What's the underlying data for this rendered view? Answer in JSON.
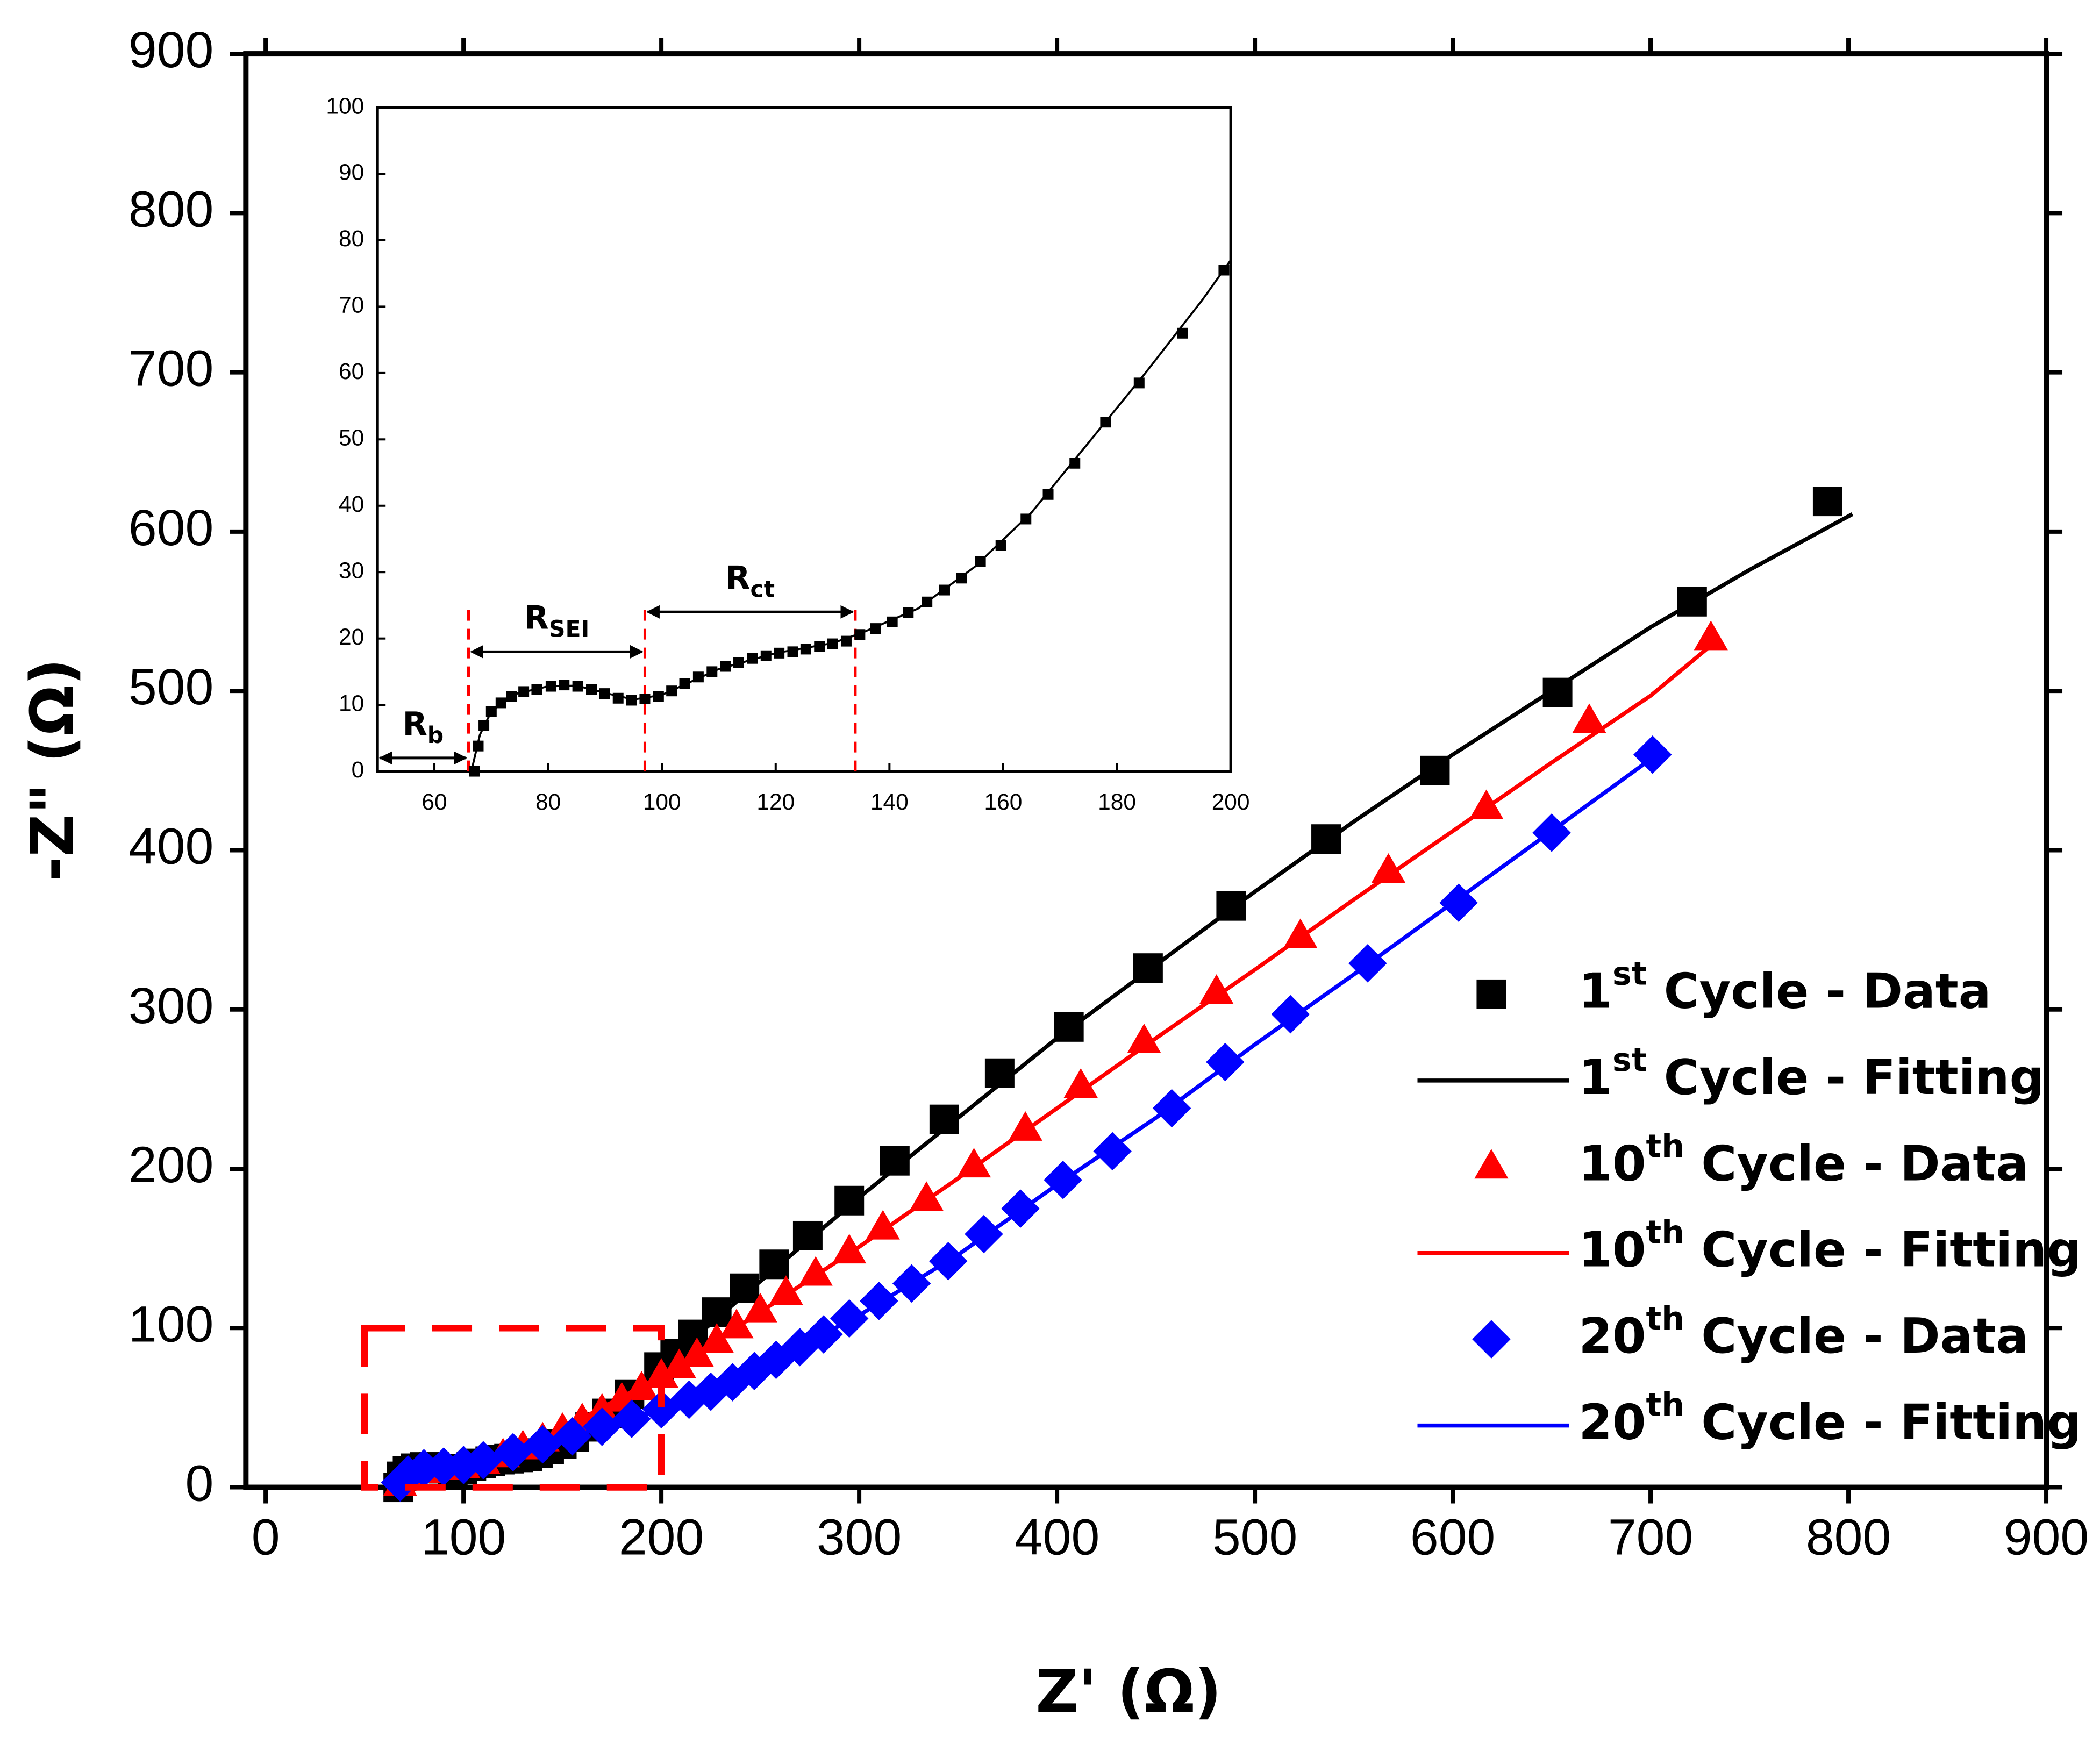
{
  "chart_data": [
    {
      "type": "scatter",
      "x_label": "Z' (Ω)",
      "y_label": "-Z\" (Ω)",
      "xlim": [
        -10,
        900
      ],
      "ylim": [
        0,
        900
      ],
      "xticks": [
        0,
        100,
        200,
        300,
        400,
        500,
        600,
        700,
        800,
        900
      ],
      "yticks": [
        0,
        100,
        200,
        300,
        400,
        500,
        600,
        700,
        800,
        900
      ],
      "legend": "lower right",
      "series": [
        {
          "name": "1st Cycle - Data",
          "style": "square",
          "color": "#000000",
          "x": [
            67,
            68.7,
            71.7,
            75.7,
            80.5,
            85.2,
            89.9,
            94.6,
            99.4,
            104,
            108.8,
            113.5,
            118.3,
            123,
            127.7,
            132.4,
            137.6,
            143.3,
            149.7,
            156,
            164,
            172.6,
            183.9,
            198.8,
            207,
            216,
            228,
            242,
            257,
            274,
            295,
            318,
            343,
            371,
            406,
            446,
            488,
            536,
            591,
            653,
            721,
            789.5
          ],
          "y": [
            0,
            6.9,
            10.3,
            12,
            12.8,
            12.8,
            11.7,
            10.7,
            11.3,
            13.2,
            15,
            16.4,
            17.4,
            18,
            18.8,
            19.6,
            21.5,
            23.9,
            27.3,
            31.6,
            38,
            46.4,
            58.5,
            75.5,
            84,
            96,
            110,
            125,
            140,
            158,
            180,
            205,
            231,
            260,
            289,
            326,
            365,
            407,
            450,
            499,
            556,
            619
          ]
        },
        {
          "name": "1st Cycle - Fitting",
          "style": "line",
          "color": "#000000",
          "x": [
            67,
            70,
            80,
            90,
            97,
            110,
            135,
            160,
            200,
            230,
            260,
            300,
            350,
            400,
            450,
            500,
            550,
            600,
            650,
            700,
            750,
            802
          ],
          "y": [
            0,
            9,
            12.8,
            11.7,
            10.9,
            15.3,
            20.6,
            34,
            76,
            108,
            140,
            182,
            232,
            282,
            328,
            374,
            418,
            460,
            500,
            540,
            576,
            611
          ]
        },
        {
          "name": "10th Cycle - Data",
          "style": "triangle",
          "color": "#ff0000",
          "x": [
            68,
            72,
            80,
            90,
            100,
            110,
            120,
            130,
            140,
            150,
            160,
            170,
            180,
            190,
            200,
            209,
            218,
            228,
            238,
            250,
            263,
            278,
            295,
            312,
            334,
            358,
            384,
            412,
            444,
            480.6,
            523,
            567.5,
            617,
            669,
            730.5
          ],
          "y": [
            2,
            6,
            10,
            12,
            13,
            16,
            20,
            25,
            30,
            36,
            42,
            48,
            55,
            62,
            70,
            76,
            83,
            92,
            101,
            111,
            122,
            134,
            148,
            163,
            181,
            202,
            225,
            252,
            280,
            311,
            346,
            387,
            427,
            481,
            533
          ]
        },
        {
          "name": "10th Cycle - Fitting",
          "style": "line",
          "color": "#ff0000",
          "x": [
            68,
            80,
            100,
            140,
            200,
            250,
            300,
            350,
            400,
            450,
            500,
            550,
            600,
            650,
            700,
            730
          ],
          "y": [
            2,
            10,
            13,
            30,
            70,
            110,
            151,
            194,
            238,
            282,
            325,
            369,
            412,
            455,
            497,
            528
          ]
        },
        {
          "name": "20th Cycle - Data",
          "style": "diamond",
          "color": "#0000ff",
          "x": [
            68,
            72,
            80,
            90,
            100,
            110,
            125,
            140,
            155,
            170,
            185,
            200,
            214,
            225,
            236,
            247,
            258,
            270,
            282,
            295,
            310,
            326.5,
            345,
            363,
            381.5,
            403,
            428,
            458,
            485,
            518,
            557,
            603,
            650,
            701
          ],
          "y": [
            3,
            8,
            12,
            13,
            14,
            17,
            22,
            27,
            32,
            38,
            43,
            49,
            55,
            60,
            66,
            73,
            80,
            88,
            96,
            106,
            117,
            128,
            142,
            159,
            175,
            193,
            211,
            238,
            267,
            297,
            329,
            367,
            411,
            460
          ]
        },
        {
          "name": "20th Cycle - Fitting",
          "style": "line",
          "color": "#0000ff",
          "x": [
            68,
            80,
            100,
            150,
            200,
            250,
            300,
            350,
            400,
            450,
            500,
            550,
            600,
            650,
            701
          ],
          "y": [
            3,
            12,
            14,
            30,
            49,
            75,
            108,
            146,
            190,
            232,
            278,
            322,
            367,
            412,
            458
          ]
        }
      ]
    },
    {
      "type": "scatter",
      "xlim": [
        50,
        200
      ],
      "ylim": [
        0,
        100
      ],
      "xticks": [
        60,
        80,
        100,
        120,
        140,
        160,
        180,
        200
      ],
      "yticks": [
        0,
        10,
        20,
        30,
        40,
        50,
        60,
        70,
        80,
        90,
        100
      ],
      "markers": [
        66,
        97,
        134
      ],
      "annotations": [
        {
          "text": "R",
          "sub": "b",
          "from": 50,
          "to": 66,
          "y": 2
        },
        {
          "text": "R",
          "sub": "SEI",
          "from": 66,
          "to": 97,
          "y": 18
        },
        {
          "text": "R",
          "sub": "ct",
          "from": 97,
          "to": 134,
          "y": 24
        }
      ],
      "series": [
        {
          "style": "square",
          "color": "#000000",
          "x": [
            67,
            67.7,
            68.7,
            70,
            71.7,
            73.6,
            75.7,
            78,
            80.5,
            82.8,
            85.2,
            87.6,
            89.9,
            92.3,
            94.6,
            97,
            99.4,
            101.7,
            104,
            106.4,
            108.8,
            111.2,
            113.5,
            115.9,
            118.3,
            120.6,
            123,
            125.3,
            127.7,
            130,
            132.4,
            134.8,
            137.6,
            140.5,
            143.3,
            146.6,
            149.7,
            152.7,
            156,
            159.6,
            164,
            167.9,
            172.6,
            178,
            183.9,
            191.5,
            198.8
          ],
          "y": [
            0,
            3.8,
            6.9,
            9,
            10.3,
            11.3,
            12,
            12.3,
            12.8,
            13,
            12.8,
            12.3,
            11.7,
            11,
            10.7,
            10.9,
            11.3,
            12.1,
            13.2,
            14.2,
            15,
            15.8,
            16.4,
            17,
            17.4,
            17.8,
            18,
            18.4,
            18.8,
            19.2,
            19.6,
            20.6,
            21.5,
            22.5,
            23.9,
            25.5,
            27.3,
            29.1,
            31.6,
            34,
            38,
            41.7,
            46.4,
            52.6,
            58.5,
            66,
            75.5
          ]
        },
        {
          "style": "line",
          "color": "#000000",
          "x": [
            66.5,
            68,
            70,
            74,
            80,
            85,
            90,
            95,
            100,
            110,
            120,
            130,
            135,
            145,
            155,
            165,
            175,
            185,
            195,
            200
          ],
          "y": [
            0,
            5.5,
            9,
            11.6,
            12.8,
            12.9,
            11.8,
            10.8,
            11.5,
            15.4,
            17.8,
            19.3,
            20.8,
            24.5,
            30.8,
            39,
            49.5,
            60,
            71,
            77
          ]
        }
      ]
    }
  ]
}
